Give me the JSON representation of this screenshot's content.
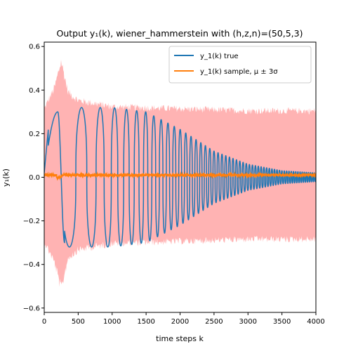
{
  "chart_data": {
    "type": "line",
    "title": "Output y₁(k), wiener_hammerstein with (h,z,n)=(50,5,3)",
    "xlabel": "time steps k",
    "ylabel": "y₁(k)",
    "xlim": [
      0,
      4000
    ],
    "ylim": [
      -0.62,
      0.62
    ],
    "x_ticks": [
      0,
      500,
      1000,
      1500,
      2000,
      2500,
      3000,
      3500,
      4000
    ],
    "x_tick_labels": [
      "0",
      "500",
      "1000",
      "1500",
      "2000",
      "2500",
      "3000",
      "3500",
      "4000"
    ],
    "y_ticks": [
      -0.6,
      -0.4,
      -0.2,
      0.0,
      0.2,
      0.4,
      0.6
    ],
    "y_tick_labels": [
      "−0.6",
      "−0.4",
      "−0.2",
      "0.0",
      "0.2",
      "0.4",
      "0.6"
    ],
    "grid": false,
    "legend_position": "top-right",
    "colors": {
      "true_line": "#1f77b4",
      "sample_line": "#ff7f0e",
      "band": "#ffb3b3"
    },
    "series": [
      {
        "name": "y_1(k) true",
        "kind": "chirp-oscillation",
        "description_points": [
          {
            "x": 0,
            "y": 0.0
          },
          {
            "x": 100,
            "y": 0.25
          },
          {
            "x": 200,
            "y": 0.3
          },
          {
            "x": 300,
            "y": -0.29
          },
          {
            "x": 1000,
            "y": 0.32
          },
          {
            "x": 1500,
            "y": 0.3
          },
          {
            "x": 2000,
            "y": 0.22
          },
          {
            "x": 2500,
            "y": 0.12
          },
          {
            "x": 3000,
            "y": 0.06
          },
          {
            "x": 3500,
            "y": 0.03
          },
          {
            "x": 4000,
            "y": 0.02
          }
        ]
      },
      {
        "name": "y_1(k) sample, μ ± 3σ",
        "kind": "mean-with-band",
        "mean": 0.01,
        "band_envelope": [
          {
            "x": 0,
            "y": 0.32
          },
          {
            "x": 150,
            "y": 0.42
          },
          {
            "x": 250,
            "y": 0.55
          },
          {
            "x": 350,
            "y": 0.4
          },
          {
            "x": 500,
            "y": 0.36
          },
          {
            "x": 1000,
            "y": 0.33
          },
          {
            "x": 2000,
            "y": 0.32
          },
          {
            "x": 3000,
            "y": 0.31
          },
          {
            "x": 4000,
            "y": 0.31
          }
        ]
      }
    ]
  }
}
